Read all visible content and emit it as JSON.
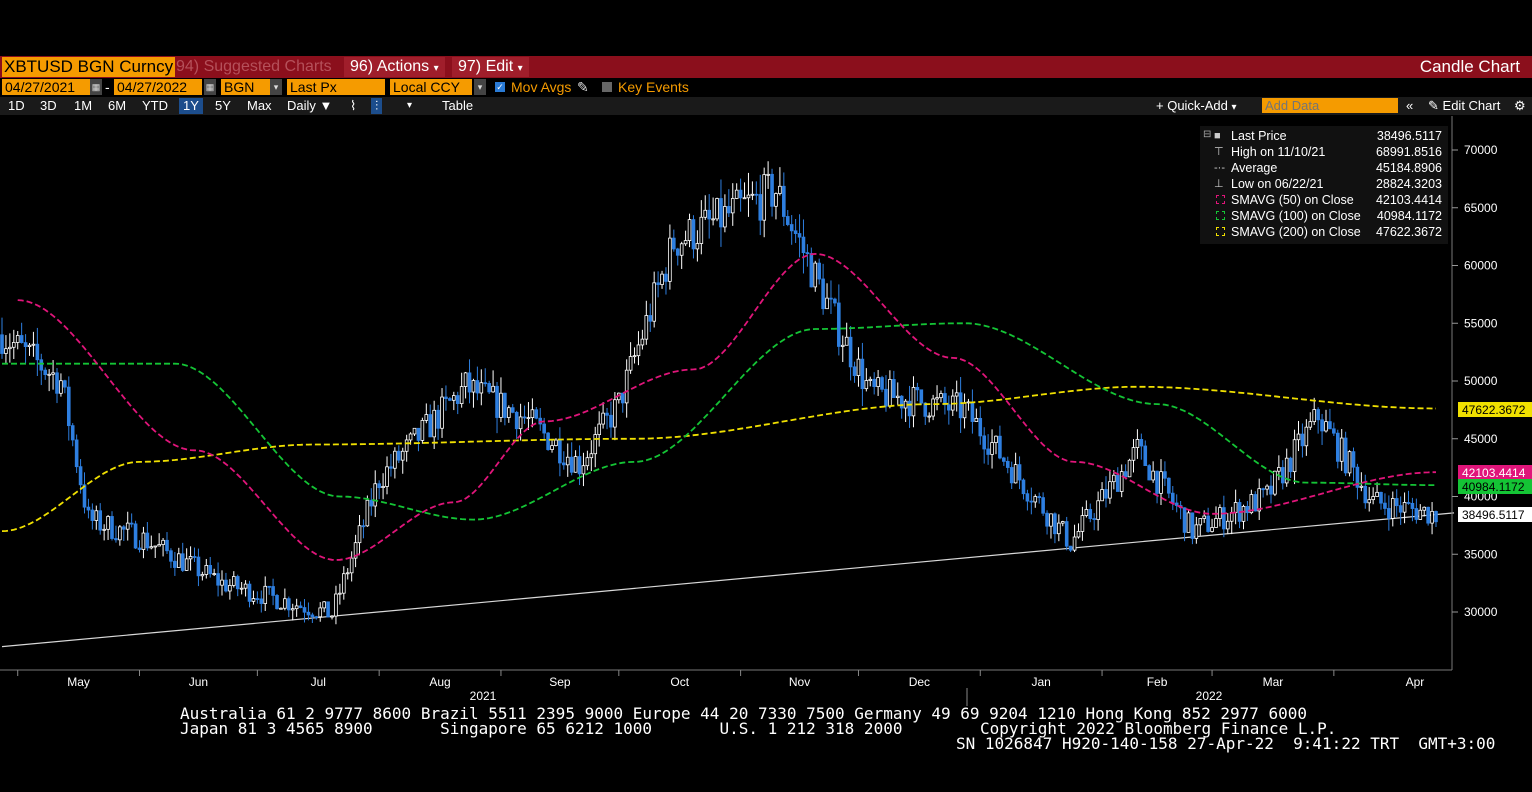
{
  "toolbar": {
    "ticker": "XBTUSD BGN Curncy",
    "suggested": "94) Suggested Charts",
    "actions": "96) Actions",
    "edit": "97) Edit",
    "title": "Candle Chart"
  },
  "settings": {
    "start_date": "04/27/2021",
    "end_date": "04/27/2022",
    "source": "BGN",
    "field": "Last Px",
    "currency": "Local CCY",
    "mov_avgs": "Mov Avgs",
    "key_events": "Key Events"
  },
  "periods": [
    "1D",
    "3D",
    "1M",
    "6M",
    "YTD",
    "1Y",
    "5Y",
    "Max"
  ],
  "selected_period": "1Y",
  "frequency": "Daily",
  "table_label": "Table",
  "quick_add": "+ Quick-Add",
  "add_data_placeholder": "Add Data",
  "edit_chart": "Edit Chart",
  "legend": {
    "rows": [
      {
        "name": "Last Price",
        "value": "38496.5117"
      },
      {
        "name": "High on 11/10/21",
        "value": "68991.8516"
      },
      {
        "name": "Average",
        "value": "45184.8906"
      },
      {
        "name": "Low on 06/22/21",
        "value": "28824.3203"
      },
      {
        "name": "SMAVG (50)  on Close",
        "value": "42103.4414"
      },
      {
        "name": "SMAVG (100)  on Close",
        "value": "40984.1172"
      },
      {
        "name": "SMAVG (200)  on Close",
        "value": "47622.3672"
      }
    ]
  },
  "colors": {
    "candle_up": "#ffffff",
    "candle_down": "#2e7fe0",
    "sma50": "#e0157a",
    "sma100": "#14c435",
    "sma200": "#f0e000",
    "trendline": "#d8d8d8",
    "topbar": "#8b0f1c",
    "accent": "#f59b00"
  },
  "footer": {
    "line1": "Australia 61 2 9777 8600 Brazil 5511 2395 9000 Europe 44 20 7330 7500 Germany 49 69 9204 1210 Hong Kong 852 2977 6000",
    "line2_left": "Japan 81 3 4565 8900       Singapore 65 6212 1000       U.S. 1 212 318 2000",
    "line2_right": "Copyright 2022 Bloomberg Finance L.P.",
    "line3": "SN 1026847 H920-140-158 27-Apr-22  9:41:22 TRT  GMT+3:00"
  },
  "chart_data": {
    "type": "candlestick",
    "y_axis": {
      "ticks": [
        "30000",
        "35000",
        "40000",
        "45000",
        "50000",
        "55000",
        "60000",
        "65000",
        "70000"
      ],
      "range": [
        25000,
        72000
      ],
      "side": "right"
    },
    "x_axis": {
      "months": [
        "May",
        "Jun",
        "Jul",
        "Aug",
        "Sep",
        "Oct",
        "Nov",
        "Dec",
        "Jan",
        "Feb",
        "Mar",
        "Apr"
      ],
      "years": [
        "2021",
        "2022"
      ]
    },
    "price_labels": {
      "sma200": "47622.3672",
      "sma50": "42103.4414",
      "sma100": "40984.1172",
      "last": "38496.5117"
    },
    "monthly_close_path": [
      {
        "x": "2021-04-27",
        "y": 54000
      },
      {
        "x": "2021-05-12",
        "y": 50000
      },
      {
        "x": "2021-05-19",
        "y": 38000
      },
      {
        "x": "2021-06-01",
        "y": 36500
      },
      {
        "x": "2021-06-22",
        "y": 32500
      },
      {
        "x": "2021-07-20",
        "y": 29800
      },
      {
        "x": "2021-08-01",
        "y": 41500
      },
      {
        "x": "2021-08-23",
        "y": 49500
      },
      {
        "x": "2021-09-07",
        "y": 46800
      },
      {
        "x": "2021-09-21",
        "y": 42800
      },
      {
        "x": "2021-10-01",
        "y": 48000
      },
      {
        "x": "2021-10-15",
        "y": 62000
      },
      {
        "x": "2021-11-10",
        "y": 66500
      },
      {
        "x": "2021-11-26",
        "y": 54500
      },
      {
        "x": "2021-12-04",
        "y": 49000
      },
      {
        "x": "2021-12-28",
        "y": 47500
      },
      {
        "x": "2022-01-10",
        "y": 42000
      },
      {
        "x": "2022-01-24",
        "y": 36000
      },
      {
        "x": "2022-02-10",
        "y": 44000
      },
      {
        "x": "2022-02-24",
        "y": 37000
      },
      {
        "x": "2022-03-15",
        "y": 40000
      },
      {
        "x": "2022-03-28",
        "y": 47000
      },
      {
        "x": "2022-04-11",
        "y": 39500
      },
      {
        "x": "2022-04-27",
        "y": 38496.5117
      }
    ],
    "sma50": [
      {
        "x": "2021-05-01",
        "y": 57000
      },
      {
        "x": "2021-06-15",
        "y": 44000
      },
      {
        "x": "2021-07-21",
        "y": 34500
      },
      {
        "x": "2021-08-20",
        "y": 39500
      },
      {
        "x": "2021-09-12",
        "y": 46500
      },
      {
        "x": "2021-10-20",
        "y": 51000
      },
      {
        "x": "2021-11-20",
        "y": 61000
      },
      {
        "x": "2021-12-25",
        "y": 52000
      },
      {
        "x": "2022-01-25",
        "y": 43000
      },
      {
        "x": "2022-03-01",
        "y": 38500
      },
      {
        "x": "2022-04-27",
        "y": 42103.4414
      }
    ],
    "sma100": [
      {
        "x": "2021-04-27",
        "y": 51500
      },
      {
        "x": "2021-06-10",
        "y": 51500
      },
      {
        "x": "2021-07-22",
        "y": 40000
      },
      {
        "x": "2021-08-25",
        "y": 38000
      },
      {
        "x": "2021-10-05",
        "y": 43000
      },
      {
        "x": "2021-11-20",
        "y": 54500
      },
      {
        "x": "2021-12-28",
        "y": 55000
      },
      {
        "x": "2022-02-15",
        "y": 48000
      },
      {
        "x": "2022-03-25",
        "y": 41200
      },
      {
        "x": "2022-04-27",
        "y": 40984.1172
      }
    ],
    "sma200": [
      {
        "x": "2021-04-27",
        "y": 37000
      },
      {
        "x": "2021-06-01",
        "y": 43000
      },
      {
        "x": "2021-07-15",
        "y": 44500
      },
      {
        "x": "2021-10-05",
        "y": 45000
      },
      {
        "x": "2021-12-20",
        "y": 48000
      },
      {
        "x": "2022-02-10",
        "y": 49500
      },
      {
        "x": "2022-04-27",
        "y": 47622.3672
      }
    ],
    "trendline": [
      {
        "x": "2021-04-27",
        "y": 27000
      },
      {
        "x": "2022-04-27",
        "y": 38496.5117
      }
    ]
  }
}
